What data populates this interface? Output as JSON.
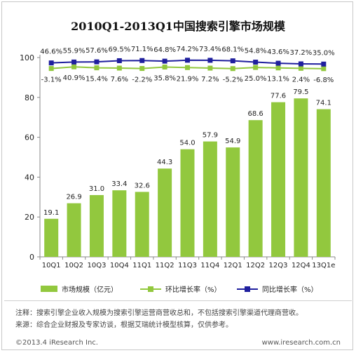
{
  "title": "2010Q1-2013Q1中国搜索引擎市场规模",
  "chart_data": {
    "type": "bar",
    "categories": [
      "10Q1",
      "10Q2",
      "10Q3",
      "10Q4",
      "11Q1",
      "11Q2",
      "11Q3",
      "11Q4",
      "12Q1",
      "12Q2",
      "12Q3",
      "12Q4",
      "13Q1e"
    ],
    "series": [
      {
        "name": "市场规模（亿元）",
        "type": "bar",
        "color": "#92c83e",
        "values": [
          19.1,
          26.9,
          31.0,
          33.4,
          32.6,
          44.3,
          54.0,
          57.9,
          54.9,
          68.6,
          77.6,
          79.5,
          74.1
        ],
        "labels": [
          "19.1",
          "26.9",
          "31.0",
          "33.4",
          "32.6",
          "44.3",
          "54.0",
          "57.9",
          "54.9",
          "68.6",
          "77.6",
          "79.5",
          "74.1"
        ]
      },
      {
        "name": "环比增长率（%）",
        "type": "line",
        "color": "#92c83e",
        "values": [
          -3.1,
          40.9,
          15.4,
          7.6,
          -2.2,
          35.8,
          21.9,
          7.2,
          -5.2,
          25.0,
          13.1,
          2.4,
          -6.8
        ],
        "labels": [
          "-3.1%",
          "40.9%",
          "15.4%",
          "7.6%",
          "-2.2%",
          "35.8%",
          "21.9%",
          "7.2%",
          "-5.2%",
          "25.0%",
          "13.1%",
          "2.4%",
          "-6.8%"
        ]
      },
      {
        "name": "同比增长率（%）",
        "type": "line",
        "color": "#1f1f9e",
        "values": [
          46.6,
          55.9,
          57.6,
          69.5,
          71.1,
          64.8,
          74.2,
          73.4,
          68.1,
          54.8,
          43.6,
          37.2,
          35.0
        ],
        "labels": [
          "46.6%",
          "55.9%",
          "57.6%",
          "69.5%",
          "71.1%",
          "64.8%",
          "74.2%",
          "73.4%",
          "68.1%",
          "54.8%",
          "43.6%",
          "37.2%",
          "35.0%"
        ]
      }
    ],
    "yticks": [
      "0",
      "20",
      "40",
      "60",
      "80",
      "100"
    ],
    "ylim": [
      0,
      100
    ],
    "grid": false,
    "legend": "bottom"
  },
  "notes": {
    "line1": "注释：搜索引擎企业收入规模为搜索引擎运营商营收总和，不包括搜索引擎渠道代理商营收。",
    "line2": "来源：综合企业财报及专家访谈，根据艾瑞统计模型核算，仅供参考。"
  },
  "footer": {
    "copyright": "©2013.4 iResearch Inc.",
    "website": "www.iresearch.com.cn"
  }
}
